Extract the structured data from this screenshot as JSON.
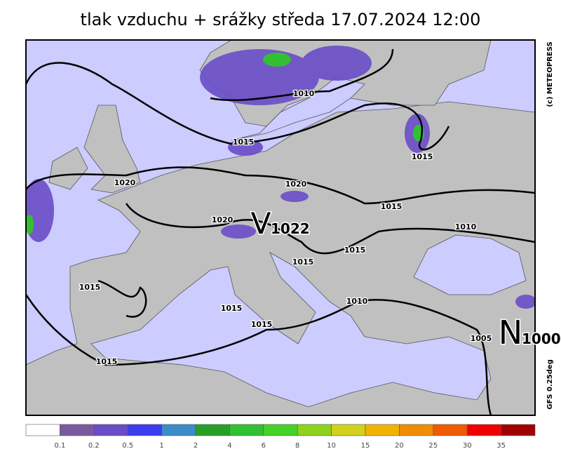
{
  "header": {
    "title": "tlak vzduchu + srážky  středa 17.07.2024 12:00"
  },
  "credits": {
    "copyright": "(c) METEOPRESS",
    "model": "GFS 0.25deg"
  },
  "centers": [
    {
      "letter": "V",
      "pressure": "1022"
    },
    {
      "letter": "N",
      "pressure": "1000"
    }
  ],
  "isobar_labels": [
    "1010",
    "1015",
    "1015",
    "1020",
    "1020",
    "1015",
    "1020",
    "1010",
    "1015",
    "1015",
    "1015",
    "1015",
    "1010",
    "1015",
    "1005",
    "1015"
  ],
  "legend": {
    "colors": [
      "#ffffff",
      "#7a5a9e",
      "#6a4cc8",
      "#3c3cf0",
      "#3c8cc8",
      "#28a028",
      "#32c032",
      "#46d228",
      "#8cd21e",
      "#d2d21e",
      "#f0b400",
      "#f08c00",
      "#f05a00",
      "#f00000",
      "#a00000"
    ],
    "labels": [
      "0.1",
      "0.2",
      "0.5",
      "1",
      "2",
      "4",
      "6",
      "8",
      "10",
      "15",
      "20",
      "25",
      "30",
      "35"
    ]
  }
}
